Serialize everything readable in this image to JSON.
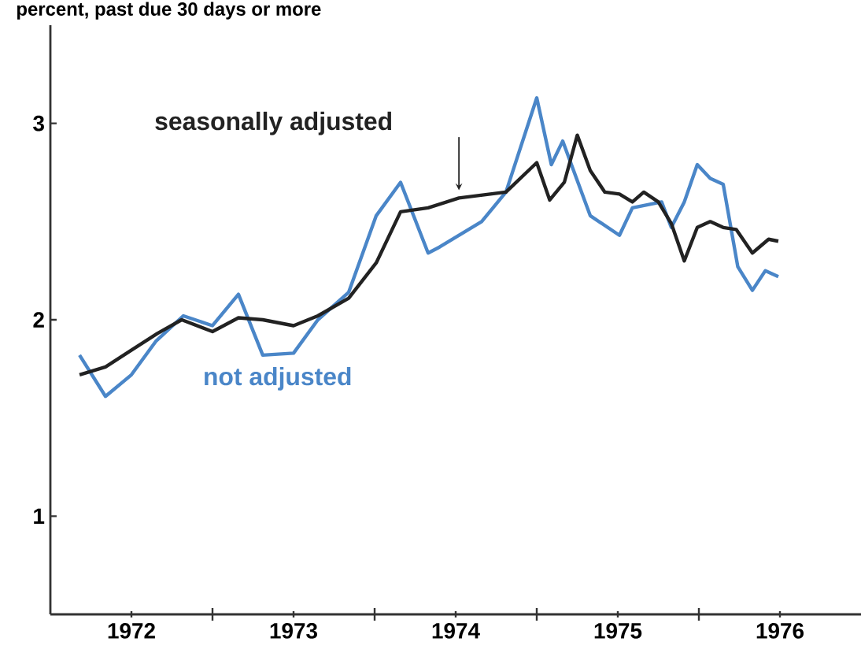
{
  "chart_data": {
    "type": "line",
    "title": "percent, past due 30 days or more",
    "xlim": [
      1972,
      1977
    ],
    "ylim": [
      0.5,
      3.5
    ],
    "yticks": [
      1,
      2,
      3
    ],
    "xticks": [
      {
        "value": 1972.5,
        "label": "1972"
      },
      {
        "value": 1973.5,
        "label": "1973"
      },
      {
        "value": 1974.5,
        "label": "1974"
      },
      {
        "value": 1975.5,
        "label": "1975"
      },
      {
        "value": 1976.5,
        "label": "1976"
      }
    ],
    "grid": false,
    "legend": false,
    "marker": "none",
    "line_style": "solid",
    "series": [
      {
        "name": "not adjusted",
        "color": "#4a86c8",
        "x": [
          1972.18,
          1972.34,
          1972.5,
          1972.65,
          1972.82,
          1973.0,
          1973.16,
          1973.31,
          1973.5,
          1973.65,
          1973.84,
          1974.01,
          1974.16,
          1974.33,
          1974.4,
          1974.66,
          1974.81,
          1975.0,
          1975.09,
          1975.16,
          1975.33,
          1975.51,
          1975.59,
          1975.77,
          1975.83,
          1975.91,
          1975.99,
          1976.07,
          1976.15,
          1976.24,
          1976.33,
          1976.41,
          1976.49
        ],
        "values": [
          1.82,
          1.61,
          1.72,
          1.89,
          2.02,
          1.97,
          2.13,
          1.82,
          1.83,
          2.0,
          2.14,
          2.53,
          2.7,
          2.34,
          2.37,
          2.5,
          2.65,
          3.13,
          2.79,
          2.91,
          2.53,
          2.43,
          2.57,
          2.6,
          2.47,
          2.6,
          2.79,
          2.72,
          2.69,
          2.27,
          2.15,
          2.25,
          2.22
        ]
      },
      {
        "name": "seasonally adjusted",
        "color": "#222222",
        "x": [
          1972.18,
          1972.34,
          1972.49,
          1972.66,
          1972.81,
          1973.0,
          1973.16,
          1973.31,
          1973.5,
          1973.65,
          1973.84,
          1974.01,
          1974.16,
          1974.33,
          1974.52,
          1974.81,
          1975.0,
          1975.08,
          1975.17,
          1975.25,
          1975.33,
          1975.42,
          1975.51,
          1975.59,
          1975.66,
          1975.75,
          1975.83,
          1975.91,
          1975.99,
          1976.07,
          1976.15,
          1976.23,
          1976.33,
          1976.43,
          1976.49
        ],
        "values": [
          1.72,
          1.76,
          1.84,
          1.93,
          2.0,
          1.94,
          2.01,
          2.0,
          1.97,
          2.02,
          2.11,
          2.29,
          2.55,
          2.57,
          2.62,
          2.65,
          2.8,
          2.61,
          2.7,
          2.94,
          2.76,
          2.65,
          2.64,
          2.6,
          2.65,
          2.6,
          2.49,
          2.3,
          2.47,
          2.5,
          2.47,
          2.46,
          2.34,
          2.41,
          2.4
        ]
      }
    ]
  }
}
